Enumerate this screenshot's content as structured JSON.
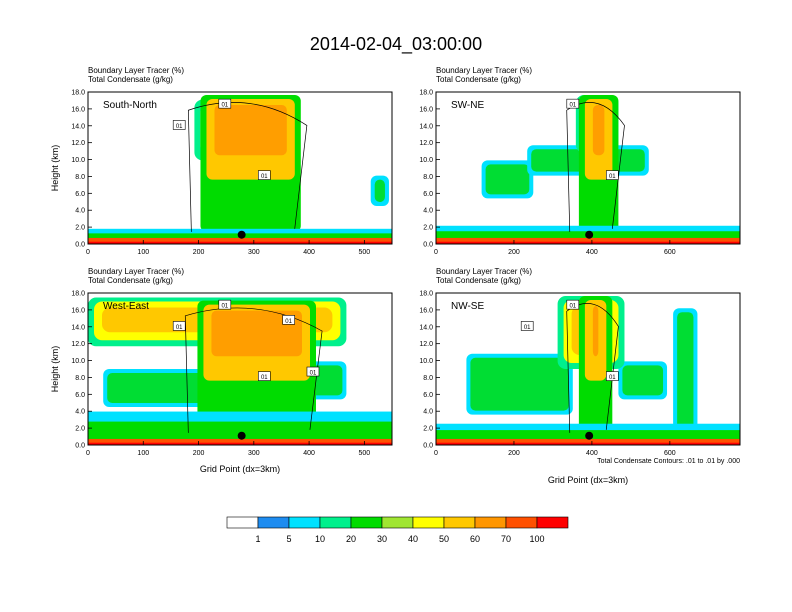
{
  "figure": {
    "title": "2014-02-04_03:00:00",
    "xlabel": "Grid Point (dx=3km)",
    "ylabel": "Height (km)",
    "contour_note": "Total Condensate Contours: .01 to .01 by .000",
    "colorbar": {
      "colors": [
        "#ffffff",
        "#1e8cf0",
        "#00e1ff",
        "#00f08c",
        "#00dc00",
        "#a0e632",
        "#ffff00",
        "#ffc800",
        "#ff9600",
        "#ff5000",
        "#ff0000"
      ],
      "labels": [
        "1",
        "5",
        "10",
        "20",
        "30",
        "40",
        "50",
        "60",
        "70",
        "100"
      ]
    }
  },
  "chart_data": [
    {
      "type": "contour",
      "panel": "South-North",
      "title_line1": "Boundary Layer Tracer   (%)",
      "title_line2": "Total Condensate   (g/kg)",
      "xlabel": "",
      "ylabel": "Height (km)",
      "xlim": [
        0,
        550
      ],
      "ylim": [
        0,
        18
      ],
      "xticks": [
        0,
        100,
        200,
        300,
        400,
        500
      ],
      "yticks": [
        "0.0",
        "2.0",
        "4.0",
        "6.0",
        "8.0",
        "10.0",
        "12.0",
        "14.0",
        "16.0",
        "18.0"
      ],
      "contour_labels": [
        "01",
        "01",
        "01"
      ],
      "marker_x": 278,
      "marker_y": 1.1
    },
    {
      "type": "contour",
      "panel": "SW-NE",
      "title_line1": "Boundary Layer Tracer   (%)",
      "title_line2": "Total Condensate   (g/kg)",
      "xlabel": "",
      "ylabel": "",
      "xlim": [
        0,
        780
      ],
      "ylim": [
        0,
        18
      ],
      "xticks": [
        0,
        200,
        400,
        600
      ],
      "yticks": [
        "0.0",
        "2.0",
        "4.0",
        "6.0",
        "8.0",
        "10.0",
        "12.0",
        "14.0",
        "16.0",
        "18.0"
      ],
      "contour_labels": [
        "01",
        "01"
      ],
      "marker_x": 393,
      "marker_y": 1.1
    },
    {
      "type": "contour",
      "panel": "West-East",
      "title_line1": "Boundary Layer Tracer   (%)",
      "title_line2": "Total Condensate   (g/kg)",
      "xlabel": "Grid Point (dx=3km)",
      "ylabel": "Height (km)",
      "xlim": [
        0,
        550
      ],
      "ylim": [
        0,
        18
      ],
      "xticks": [
        0,
        100,
        200,
        300,
        400,
        500
      ],
      "yticks": [
        "0.0",
        "2.0",
        "4.0",
        "6.0",
        "8.0",
        "10.0",
        "12.0",
        "14.0",
        "16.0",
        "18.0"
      ],
      "contour_labels": [
        "01",
        "01",
        "01",
        "01",
        "01"
      ],
      "marker_x": 278,
      "marker_y": 1.1
    },
    {
      "type": "contour",
      "panel": "NW-SE",
      "title_line1": "Boundary Layer Tracer   (%)",
      "title_line2": "Total Condensate   (g/kg)",
      "xlabel": "Grid Point (dx=3km)",
      "ylabel": "",
      "xlim": [
        0,
        780
      ],
      "ylim": [
        0,
        18
      ],
      "xticks": [
        0,
        200,
        400,
        600
      ],
      "yticks": [
        "0.0",
        "2.0",
        "4.0",
        "6.0",
        "8.0",
        "10.0",
        "12.0",
        "14.0",
        "16.0",
        "18.0"
      ],
      "contour_labels": [
        "01",
        "01",
        "01"
      ],
      "marker_x": 393,
      "marker_y": 1.1
    }
  ]
}
